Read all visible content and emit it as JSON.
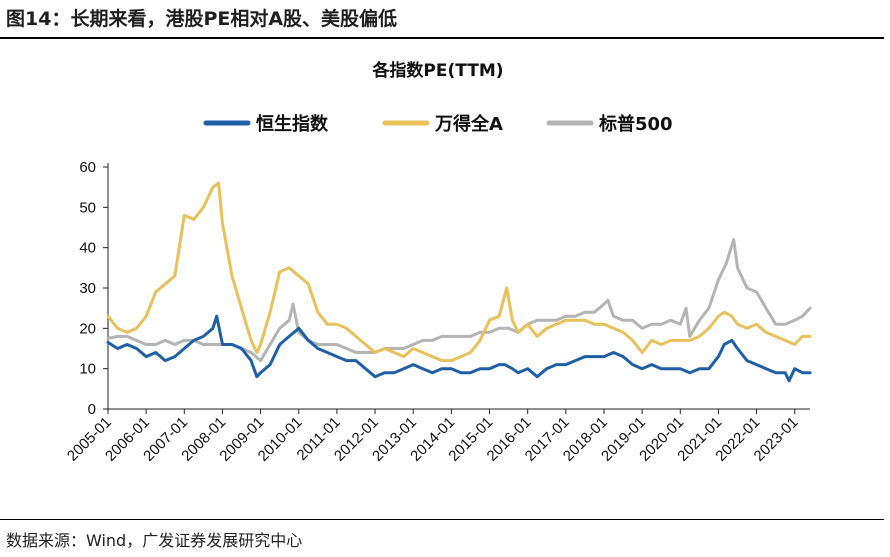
{
  "figure_title": "图14：长期来看，港股PE相对A股、美股偏低",
  "source": "数据来源：Wind，广发证券发展研究中心",
  "chart_data": {
    "type": "line",
    "title": "各指数PE(TTM)",
    "ylim": [
      0,
      60
    ],
    "yticks": [
      0,
      10,
      20,
      30,
      40,
      50,
      60
    ],
    "xlim": [
      2005.0,
      2023.4
    ],
    "xticks": [
      "2005-01",
      "2006-01",
      "2007-01",
      "2008-01",
      "2009-01",
      "2010-01",
      "2011-01",
      "2012-01",
      "2013-01",
      "2014-01",
      "2015-01",
      "2016-01",
      "2017-01",
      "2018-01",
      "2019-01",
      "2020-01",
      "2021-01",
      "2022-01",
      "2023-01"
    ],
    "legend_position": "top",
    "grid": false,
    "series": [
      {
        "name": "恒生指数",
        "color": "#1f5fa6",
        "x": [
          2005.0,
          2005.25,
          2005.5,
          2005.75,
          2006.0,
          2006.25,
          2006.5,
          2006.75,
          2007.0,
          2007.25,
          2007.5,
          2007.75,
          2007.85,
          2008.0,
          2008.25,
          2008.5,
          2008.75,
          2008.9,
          2009.0,
          2009.25,
          2009.5,
          2009.75,
          2010.0,
          2010.25,
          2010.5,
          2010.75,
          2011.0,
          2011.25,
          2011.5,
          2011.75,
          2012.0,
          2012.25,
          2012.5,
          2012.75,
          2013.0,
          2013.25,
          2013.5,
          2013.75,
          2014.0,
          2014.25,
          2014.5,
          2014.75,
          2015.0,
          2015.25,
          2015.4,
          2015.6,
          2015.75,
          2016.0,
          2016.25,
          2016.5,
          2016.75,
          2017.0,
          2017.25,
          2017.5,
          2017.75,
          2018.0,
          2018.25,
          2018.5,
          2018.75,
          2019.0,
          2019.25,
          2019.5,
          2019.75,
          2020.0,
          2020.25,
          2020.5,
          2020.75,
          2021.0,
          2021.15,
          2021.35,
          2021.5,
          2021.75,
          2022.0,
          2022.25,
          2022.5,
          2022.75,
          2022.85,
          2023.0,
          2023.2,
          2023.4
        ],
        "values": [
          16.5,
          15,
          16,
          15,
          13,
          14,
          12,
          13,
          15,
          17,
          18,
          20,
          23,
          16,
          16,
          15,
          12,
          8,
          9,
          11,
          16,
          18,
          20,
          17,
          15,
          14,
          13,
          12,
          12,
          10,
          8,
          9,
          9,
          10,
          11,
          10,
          9,
          10,
          10,
          9,
          9,
          10,
          10,
          11,
          11,
          10,
          9,
          10,
          8,
          10,
          11,
          11,
          12,
          13,
          13,
          13,
          14,
          13,
          11,
          10,
          11,
          10,
          10,
          10,
          9,
          10,
          10,
          13,
          16,
          17,
          15,
          12,
          11,
          10,
          9,
          9,
          7,
          10,
          9,
          9
        ]
      },
      {
        "name": "万得全A",
        "color": "#e8c15a",
        "x": [
          2005.0,
          2005.25,
          2005.5,
          2005.75,
          2006.0,
          2006.25,
          2006.5,
          2006.75,
          2007.0,
          2007.25,
          2007.5,
          2007.75,
          2007.9,
          2008.0,
          2008.25,
          2008.5,
          2008.75,
          2008.9,
          2009.0,
          2009.25,
          2009.5,
          2009.75,
          2010.0,
          2010.25,
          2010.5,
          2010.75,
          2011.0,
          2011.25,
          2011.5,
          2011.75,
          2012.0,
          2012.25,
          2012.5,
          2012.75,
          2013.0,
          2013.25,
          2013.5,
          2013.75,
          2014.0,
          2014.25,
          2014.5,
          2014.75,
          2015.0,
          2015.25,
          2015.45,
          2015.6,
          2015.75,
          2016.0,
          2016.25,
          2016.5,
          2016.75,
          2017.0,
          2017.25,
          2017.5,
          2017.75,
          2018.0,
          2018.25,
          2018.5,
          2018.75,
          2019.0,
          2019.25,
          2019.5,
          2019.75,
          2020.0,
          2020.25,
          2020.5,
          2020.75,
          2021.0,
          2021.15,
          2021.35,
          2021.5,
          2021.75,
          2022.0,
          2022.25,
          2022.5,
          2022.75,
          2023.0,
          2023.2,
          2023.4
        ],
        "values": [
          23,
          20,
          19,
          20,
          23,
          29,
          31,
          33,
          48,
          47,
          50,
          55,
          56,
          46,
          33,
          25,
          17,
          14,
          16,
          24,
          34,
          35,
          33,
          31,
          24,
          21,
          21,
          20,
          18,
          16,
          14,
          15,
          14,
          13,
          15,
          14,
          13,
          12,
          12,
          13,
          14,
          17,
          22,
          23,
          30,
          22,
          19,
          21,
          18,
          20,
          21,
          22,
          22,
          22,
          21,
          21,
          20,
          19,
          17,
          14,
          17,
          16,
          17,
          17,
          17,
          18,
          20,
          23,
          24,
          23,
          21,
          20,
          21,
          19,
          18,
          17,
          16,
          18,
          18
        ]
      },
      {
        "name": "标普500",
        "color": "#b4b4b4",
        "x": [
          2005.0,
          2005.25,
          2005.5,
          2005.75,
          2006.0,
          2006.25,
          2006.5,
          2006.75,
          2007.0,
          2007.25,
          2007.5,
          2007.75,
          2008.0,
          2008.25,
          2008.5,
          2008.75,
          2009.0,
          2009.25,
          2009.5,
          2009.75,
          2009.85,
          2010.0,
          2010.25,
          2010.5,
          2010.75,
          2011.0,
          2011.25,
          2011.5,
          2011.75,
          2012.0,
          2012.25,
          2012.5,
          2012.75,
          2013.0,
          2013.25,
          2013.5,
          2013.75,
          2014.0,
          2014.25,
          2014.5,
          2014.75,
          2015.0,
          2015.25,
          2015.5,
          2015.75,
          2016.0,
          2016.25,
          2016.5,
          2016.75,
          2017.0,
          2017.25,
          2017.5,
          2017.75,
          2018.0,
          2018.1,
          2018.25,
          2018.5,
          2018.75,
          2019.0,
          2019.25,
          2019.5,
          2019.75,
          2020.0,
          2020.15,
          2020.25,
          2020.5,
          2020.75,
          2021.0,
          2021.2,
          2021.4,
          2021.5,
          2021.75,
          2022.0,
          2022.25,
          2022.5,
          2022.75,
          2023.0,
          2023.2,
          2023.4
        ],
        "values": [
          17.5,
          18,
          18,
          17,
          16,
          16,
          17,
          16,
          17,
          17,
          16,
          16,
          16,
          16,
          15,
          14,
          12,
          16,
          20,
          22,
          26,
          19,
          17,
          16,
          16,
          16,
          15,
          14,
          14,
          14,
          15,
          15,
          15,
          16,
          17,
          17,
          18,
          18,
          18,
          18,
          19,
          19,
          20,
          20,
          19,
          21,
          22,
          22,
          22,
          23,
          23,
          24,
          24,
          26,
          27,
          23,
          22,
          22,
          20,
          21,
          21,
          22,
          21,
          25,
          18,
          22,
          25,
          32,
          36,
          42,
          35,
          30,
          29,
          25,
          21,
          21,
          22,
          23,
          25
        ]
      }
    ]
  }
}
